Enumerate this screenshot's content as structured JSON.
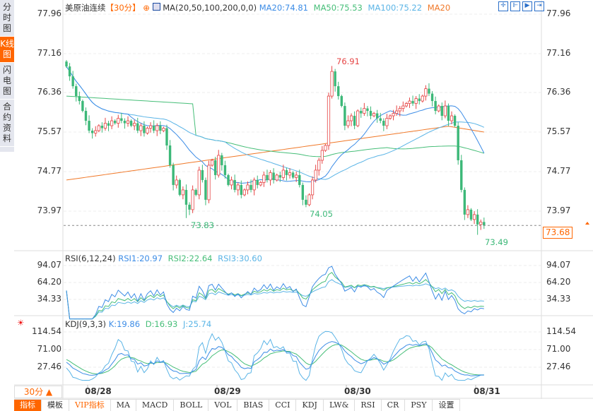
{
  "sidebar": {
    "items": [
      {
        "label": "分时图"
      },
      {
        "label": "K线图",
        "active": true
      },
      {
        "label": "闪电图"
      },
      {
        "label": "合约资料"
      }
    ]
  },
  "header": {
    "symbol": "美原油连续",
    "period": "【30分】",
    "ma_label": "MA(20,50,100,200,0,0)",
    "ma20": "MA20:74.81",
    "ma50": "MA50:75.53",
    "ma100": "MA100:75.22",
    "ma200": "MA20"
  },
  "toolbar": [
    "crosshair-icon",
    "zoom-in-icon",
    "play-icon",
    "exit-icon"
  ],
  "price_axis": [
    "77.96",
    "77.16",
    "76.36",
    "75.57",
    "74.77",
    "73.97"
  ],
  "annotations": {
    "high": "76.91",
    "low1": "73.83",
    "low2": "74.05",
    "low3": "73.49",
    "last": "73.68"
  },
  "rsi": {
    "title": "RSI(6,12,24)",
    "rsi1": "RSI1:20.97",
    "rsi2": "RSI2:22.64",
    "rsi3": "RSI3:30.60",
    "axis": [
      "94.07",
      "64.20",
      "34.33"
    ]
  },
  "kdj": {
    "title": "KDJ(9,3,3)",
    "k": "K:19.86",
    "d": "D:16.93",
    "j": "J:25.74",
    "axis": [
      "114.54",
      "71.00",
      "27.46"
    ]
  },
  "time_axis": [
    "08/28",
    "08/29",
    "08/30",
    "08/31"
  ],
  "period_selector": "30分 ▲",
  "tabs": [
    "指标",
    "模板",
    "VIP指标",
    "MA",
    "MACD",
    "BOLL",
    "VOL",
    "BIAS",
    "CCI",
    "KDJ",
    "LW&",
    "RSI",
    "CR",
    "PSY",
    "设置"
  ],
  "colors": {
    "up": "#e64545",
    "down": "#3cb878",
    "ma20": "#3c8ce6",
    "ma50": "#46be78",
    "ma100": "#5ab4e6",
    "ma200": "#f07828",
    "accent": "#ff6600"
  },
  "chart_data": {
    "type": "candlestick",
    "closes": [
      76.9,
      76.7,
      76.5,
      76.3,
      76.2,
      76.0,
      75.8,
      75.6,
      75.55,
      75.6,
      75.7,
      75.65,
      75.75,
      75.7,
      75.8,
      75.75,
      75.85,
      75.8,
      75.75,
      75.8,
      75.7,
      75.75,
      75.6,
      75.7,
      75.55,
      75.65,
      75.7,
      75.6,
      75.7,
      75.6,
      75.65,
      75.3,
      74.9,
      74.5,
      74.6,
      74.3,
      74.4,
      74.1,
      74.0,
      74.4,
      74.3,
      74.8,
      74.6,
      74.2,
      74.9,
      75.0,
      74.7,
      75.1,
      74.9,
      74.7,
      74.5,
      74.6,
      74.4,
      74.5,
      74.3,
      74.4,
      74.5,
      74.4,
      74.6,
      74.5,
      74.55,
      74.7,
      74.6,
      74.75,
      74.6,
      74.7,
      74.65,
      74.8,
      74.7,
      74.75,
      74.65,
      74.7,
      74.5,
      74.2,
      74.1,
      74.3,
      74.6,
      74.8,
      75.0,
      75.2,
      75.3,
      76.3,
      76.8,
      76.5,
      76.3,
      76.1,
      75.7,
      75.8,
      75.9,
      75.7,
      76.0,
      75.95,
      76.05,
      76.0,
      75.9,
      75.95,
      75.85,
      75.8,
      75.7,
      75.85,
      75.9,
      75.95,
      76.0,
      76.05,
      76.1,
      76.15,
      76.2,
      76.15,
      76.25,
      76.2,
      76.3,
      76.45,
      76.35,
      76.2,
      76.0,
      76.1,
      75.9,
      76.1,
      75.8,
      75.9,
      75.7,
      75.0,
      74.4,
      73.9,
      74.0,
      73.8,
      73.9,
      73.7,
      73.75,
      73.68
    ],
    "ylim": [
      73.4,
      78.0
    ]
  }
}
